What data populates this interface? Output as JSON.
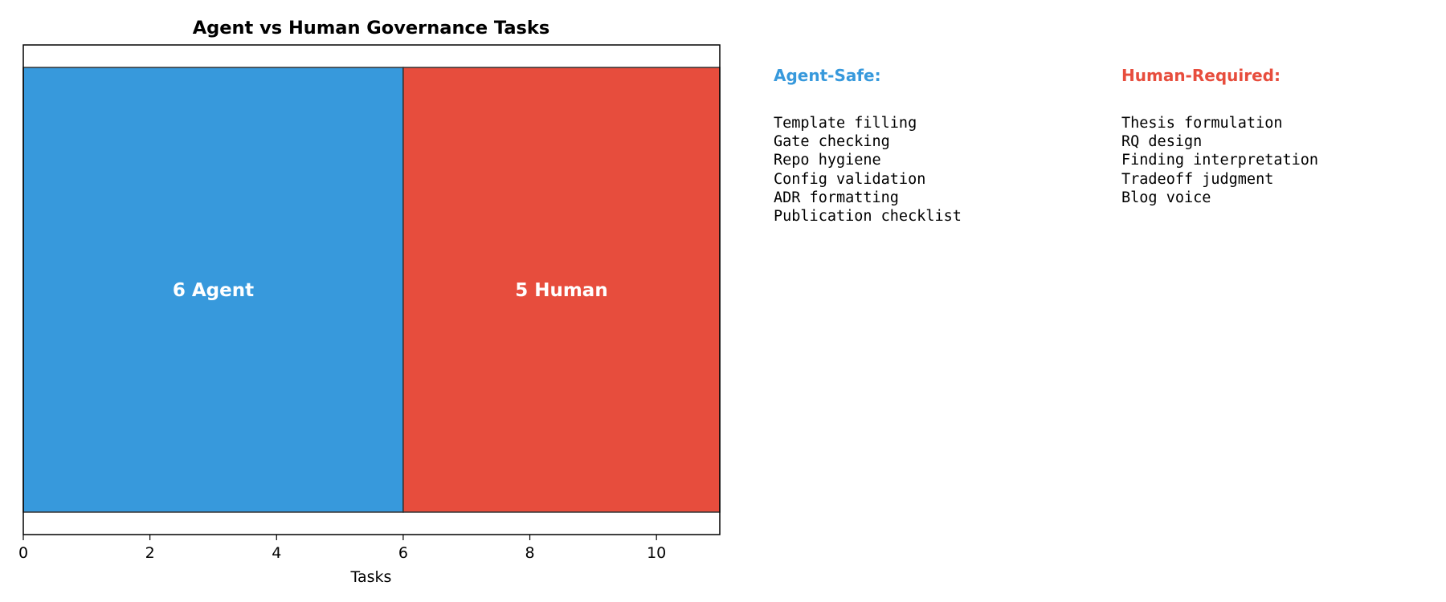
{
  "colors": {
    "agent": "#3799dc",
    "human": "#e74d3d",
    "edge": "#333333",
    "bar_label": "#ffffff"
  },
  "chart_data": {
    "type": "bar",
    "orientation": "horizontal-stacked",
    "title": "Agent vs Human Governance Tasks",
    "xlabel": "Tasks",
    "ylabel": "",
    "xlim": [
      0,
      11
    ],
    "xticks": [
      0,
      2,
      4,
      6,
      8,
      10
    ],
    "grid": false,
    "series": [
      {
        "value": 6,
        "label": "6 Agent",
        "color": "#3799dc"
      },
      {
        "value": 5,
        "label": "5 Human",
        "color": "#e74d3d"
      }
    ]
  },
  "panels": {
    "agent": {
      "title": "Agent-Safe:",
      "color": "#3799dc",
      "items": [
        "Template filling",
        "Gate checking",
        "Repo hygiene",
        "Config validation",
        "ADR formatting",
        "Publication checklist"
      ]
    },
    "human": {
      "title": "Human-Required:",
      "color": "#e74d3d",
      "items": [
        "Thesis formulation",
        "RQ design",
        "Finding interpretation",
        "Tradeoff judgment",
        "Blog voice"
      ]
    }
  }
}
